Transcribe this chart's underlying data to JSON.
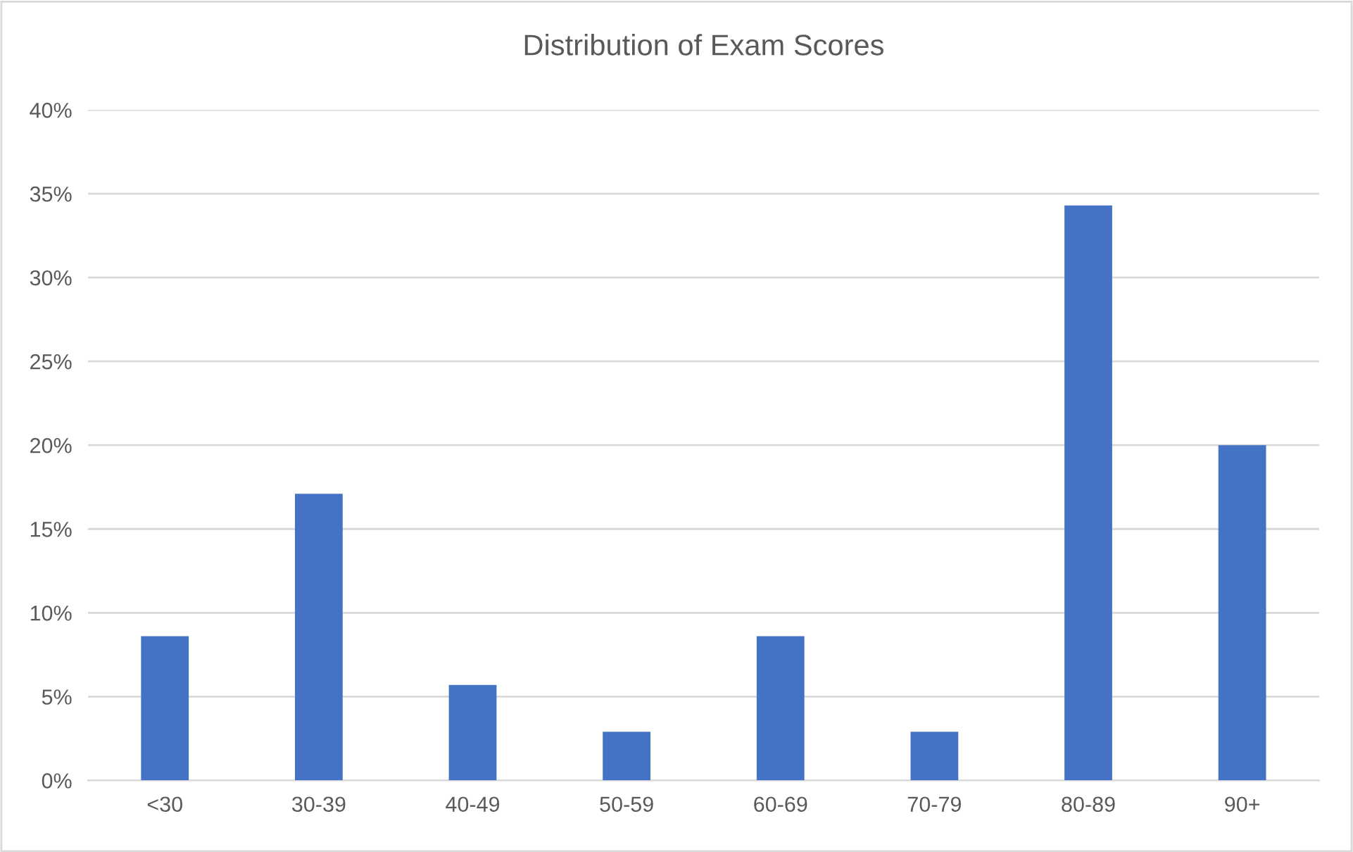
{
  "chart_data": {
    "type": "bar",
    "title": "Distribution of Exam Scores",
    "categories": [
      "<30",
      "30-39",
      "40-49",
      "50-59",
      "60-69",
      "70-79",
      "80-89",
      "90+"
    ],
    "values": [
      8.6,
      17.1,
      5.7,
      2.9,
      8.6,
      2.9,
      34.3,
      20.0
    ],
    "color": "#4472c4",
    "ylim": [
      0,
      40
    ],
    "yticks": [
      {
        "value": 0,
        "label": "0%"
      },
      {
        "value": 5,
        "label": "5%"
      },
      {
        "value": 10,
        "label": "10%"
      },
      {
        "value": 15,
        "label": "15%"
      },
      {
        "value": 20,
        "label": "20%"
      },
      {
        "value": 25,
        "label": "25%"
      },
      {
        "value": 30,
        "label": "30%"
      },
      {
        "value": 35,
        "label": "35%"
      },
      {
        "value": 40,
        "label": "40%"
      }
    ],
    "grid": "y",
    "legend": false
  }
}
